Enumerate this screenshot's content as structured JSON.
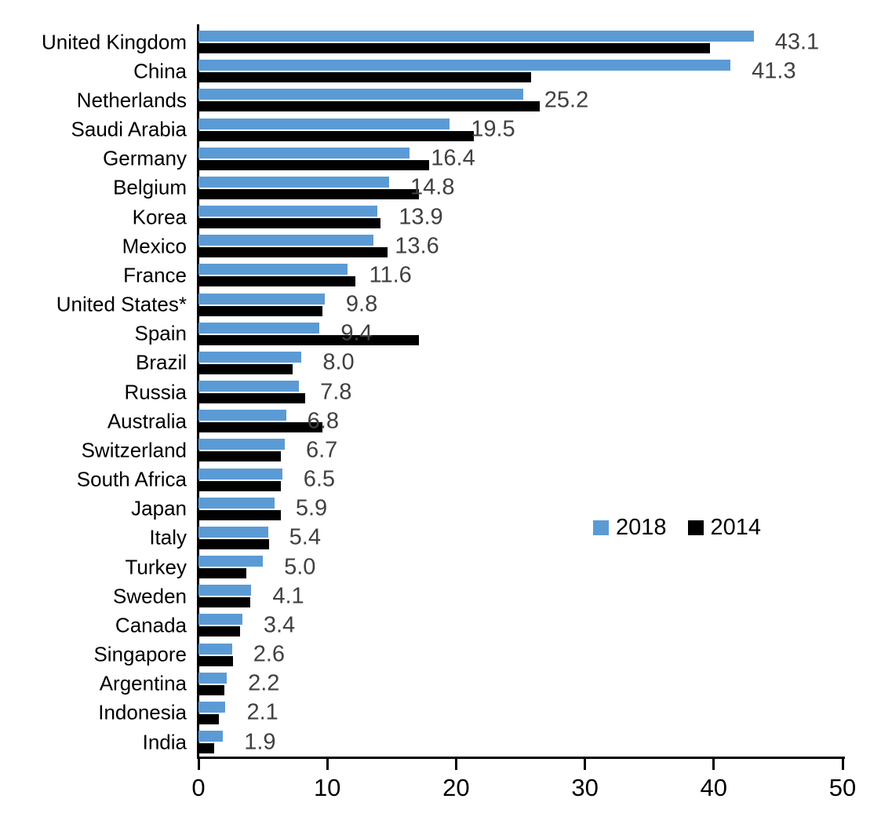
{
  "chart_data": {
    "type": "bar",
    "orientation": "horizontal",
    "title": "",
    "xlabel": "",
    "ylabel": "",
    "xlim": [
      0,
      50
    ],
    "x_ticks": [
      "0",
      "10",
      "20",
      "30",
      "40",
      "50"
    ],
    "grid": false,
    "axis_color": "#000000",
    "value_label_color": "#404040",
    "categories": [
      "United Kingdom",
      "China",
      "Netherlands",
      "Saudi Arabia",
      "Germany",
      "Belgium",
      "Korea",
      "Mexico",
      "France",
      "United States*",
      "Spain",
      "Brazil",
      "Russia",
      "Australia",
      "Switzerland",
      "South Africa",
      "Japan",
      "Italy",
      "Turkey",
      "Sweden",
      "Canada",
      "Singapore",
      "Argentina",
      "Indonesia",
      "India"
    ],
    "series": [
      {
        "name": "2018",
        "color": "#5B9BD5",
        "values": [
          43.1,
          41.3,
          25.2,
          19.5,
          16.4,
          14.8,
          13.9,
          13.6,
          11.6,
          9.8,
          9.4,
          8.0,
          7.8,
          6.8,
          6.7,
          6.5,
          5.9,
          5.4,
          5.0,
          4.1,
          3.4,
          2.6,
          2.2,
          2.1,
          1.9
        ]
      },
      {
        "name": "2014",
        "color": "#000000",
        "values": [
          39.7,
          25.8,
          26.5,
          21.4,
          17.9,
          17.1,
          14.1,
          14.7,
          12.2,
          9.6,
          17.1,
          7.3,
          8.3,
          9.6,
          6.4,
          6.4,
          6.4,
          5.5,
          3.7,
          4.0,
          3.2,
          2.7,
          2.0,
          1.6,
          1.2
        ]
      }
    ],
    "value_labels": [
      "43.1",
      "41.3",
      "25.2",
      "19.5",
      "16.4",
      "14.8",
      "13.9",
      "13.6",
      "11.6",
      "9.8",
      "9.4",
      "8.0",
      "7.8",
      "6.8",
      "6.7",
      "6.5",
      "5.9",
      "5.4",
      "5.0",
      "4.1",
      "3.4",
      "2.6",
      "2.2",
      "2.1",
      "1.9"
    ],
    "value_labels_series": "2018",
    "legend_position": "center-right"
  }
}
